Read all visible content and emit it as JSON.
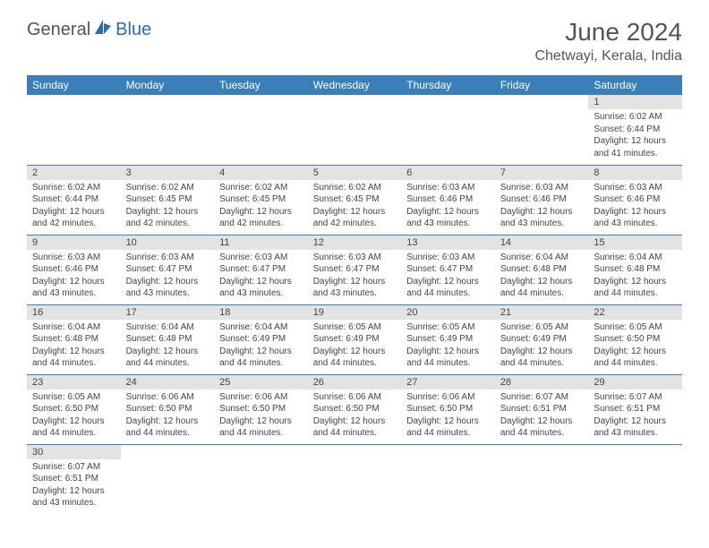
{
  "logo": {
    "general": "General",
    "blue": "Blue"
  },
  "header": {
    "month": "June 2024",
    "location": "Chetwayi, Kerala, India"
  },
  "colors": {
    "headerBg": "#3a7fb8",
    "dayNumBg": "#e3e3e3",
    "border": "#3a7fb8"
  },
  "weekdays": [
    "Sunday",
    "Monday",
    "Tuesday",
    "Wednesday",
    "Thursday",
    "Friday",
    "Saturday"
  ],
  "weeks": [
    [
      null,
      null,
      null,
      null,
      null,
      null,
      {
        "n": "1",
        "sr": "Sunrise: 6:02 AM",
        "ss": "Sunset: 6:44 PM",
        "d1": "Daylight: 12 hours",
        "d2": "and 41 minutes."
      }
    ],
    [
      {
        "n": "2",
        "sr": "Sunrise: 6:02 AM",
        "ss": "Sunset: 6:44 PM",
        "d1": "Daylight: 12 hours",
        "d2": "and 42 minutes."
      },
      {
        "n": "3",
        "sr": "Sunrise: 6:02 AM",
        "ss": "Sunset: 6:45 PM",
        "d1": "Daylight: 12 hours",
        "d2": "and 42 minutes."
      },
      {
        "n": "4",
        "sr": "Sunrise: 6:02 AM",
        "ss": "Sunset: 6:45 PM",
        "d1": "Daylight: 12 hours",
        "d2": "and 42 minutes."
      },
      {
        "n": "5",
        "sr": "Sunrise: 6:02 AM",
        "ss": "Sunset: 6:45 PM",
        "d1": "Daylight: 12 hours",
        "d2": "and 42 minutes."
      },
      {
        "n": "6",
        "sr": "Sunrise: 6:03 AM",
        "ss": "Sunset: 6:46 PM",
        "d1": "Daylight: 12 hours",
        "d2": "and 43 minutes."
      },
      {
        "n": "7",
        "sr": "Sunrise: 6:03 AM",
        "ss": "Sunset: 6:46 PM",
        "d1": "Daylight: 12 hours",
        "d2": "and 43 minutes."
      },
      {
        "n": "8",
        "sr": "Sunrise: 6:03 AM",
        "ss": "Sunset: 6:46 PM",
        "d1": "Daylight: 12 hours",
        "d2": "and 43 minutes."
      }
    ],
    [
      {
        "n": "9",
        "sr": "Sunrise: 6:03 AM",
        "ss": "Sunset: 6:46 PM",
        "d1": "Daylight: 12 hours",
        "d2": "and 43 minutes."
      },
      {
        "n": "10",
        "sr": "Sunrise: 6:03 AM",
        "ss": "Sunset: 6:47 PM",
        "d1": "Daylight: 12 hours",
        "d2": "and 43 minutes."
      },
      {
        "n": "11",
        "sr": "Sunrise: 6:03 AM",
        "ss": "Sunset: 6:47 PM",
        "d1": "Daylight: 12 hours",
        "d2": "and 43 minutes."
      },
      {
        "n": "12",
        "sr": "Sunrise: 6:03 AM",
        "ss": "Sunset: 6:47 PM",
        "d1": "Daylight: 12 hours",
        "d2": "and 43 minutes."
      },
      {
        "n": "13",
        "sr": "Sunrise: 6:03 AM",
        "ss": "Sunset: 6:47 PM",
        "d1": "Daylight: 12 hours",
        "d2": "and 44 minutes."
      },
      {
        "n": "14",
        "sr": "Sunrise: 6:04 AM",
        "ss": "Sunset: 6:48 PM",
        "d1": "Daylight: 12 hours",
        "d2": "and 44 minutes."
      },
      {
        "n": "15",
        "sr": "Sunrise: 6:04 AM",
        "ss": "Sunset: 6:48 PM",
        "d1": "Daylight: 12 hours",
        "d2": "and 44 minutes."
      }
    ],
    [
      {
        "n": "16",
        "sr": "Sunrise: 6:04 AM",
        "ss": "Sunset: 6:48 PM",
        "d1": "Daylight: 12 hours",
        "d2": "and 44 minutes."
      },
      {
        "n": "17",
        "sr": "Sunrise: 6:04 AM",
        "ss": "Sunset: 6:48 PM",
        "d1": "Daylight: 12 hours",
        "d2": "and 44 minutes."
      },
      {
        "n": "18",
        "sr": "Sunrise: 6:04 AM",
        "ss": "Sunset: 6:49 PM",
        "d1": "Daylight: 12 hours",
        "d2": "and 44 minutes."
      },
      {
        "n": "19",
        "sr": "Sunrise: 6:05 AM",
        "ss": "Sunset: 6:49 PM",
        "d1": "Daylight: 12 hours",
        "d2": "and 44 minutes."
      },
      {
        "n": "20",
        "sr": "Sunrise: 6:05 AM",
        "ss": "Sunset: 6:49 PM",
        "d1": "Daylight: 12 hours",
        "d2": "and 44 minutes."
      },
      {
        "n": "21",
        "sr": "Sunrise: 6:05 AM",
        "ss": "Sunset: 6:49 PM",
        "d1": "Daylight: 12 hours",
        "d2": "and 44 minutes."
      },
      {
        "n": "22",
        "sr": "Sunrise: 6:05 AM",
        "ss": "Sunset: 6:50 PM",
        "d1": "Daylight: 12 hours",
        "d2": "and 44 minutes."
      }
    ],
    [
      {
        "n": "23",
        "sr": "Sunrise: 6:05 AM",
        "ss": "Sunset: 6:50 PM",
        "d1": "Daylight: 12 hours",
        "d2": "and 44 minutes."
      },
      {
        "n": "24",
        "sr": "Sunrise: 6:06 AM",
        "ss": "Sunset: 6:50 PM",
        "d1": "Daylight: 12 hours",
        "d2": "and 44 minutes."
      },
      {
        "n": "25",
        "sr": "Sunrise: 6:06 AM",
        "ss": "Sunset: 6:50 PM",
        "d1": "Daylight: 12 hours",
        "d2": "and 44 minutes."
      },
      {
        "n": "26",
        "sr": "Sunrise: 6:06 AM",
        "ss": "Sunset: 6:50 PM",
        "d1": "Daylight: 12 hours",
        "d2": "and 44 minutes."
      },
      {
        "n": "27",
        "sr": "Sunrise: 6:06 AM",
        "ss": "Sunset: 6:50 PM",
        "d1": "Daylight: 12 hours",
        "d2": "and 44 minutes."
      },
      {
        "n": "28",
        "sr": "Sunrise: 6:07 AM",
        "ss": "Sunset: 6:51 PM",
        "d1": "Daylight: 12 hours",
        "d2": "and 44 minutes."
      },
      {
        "n": "29",
        "sr": "Sunrise: 6:07 AM",
        "ss": "Sunset: 6:51 PM",
        "d1": "Daylight: 12 hours",
        "d2": "and 43 minutes."
      }
    ],
    [
      {
        "n": "30",
        "sr": "Sunrise: 6:07 AM",
        "ss": "Sunset: 6:51 PM",
        "d1": "Daylight: 12 hours",
        "d2": "and 43 minutes."
      },
      null,
      null,
      null,
      null,
      null,
      null
    ]
  ]
}
